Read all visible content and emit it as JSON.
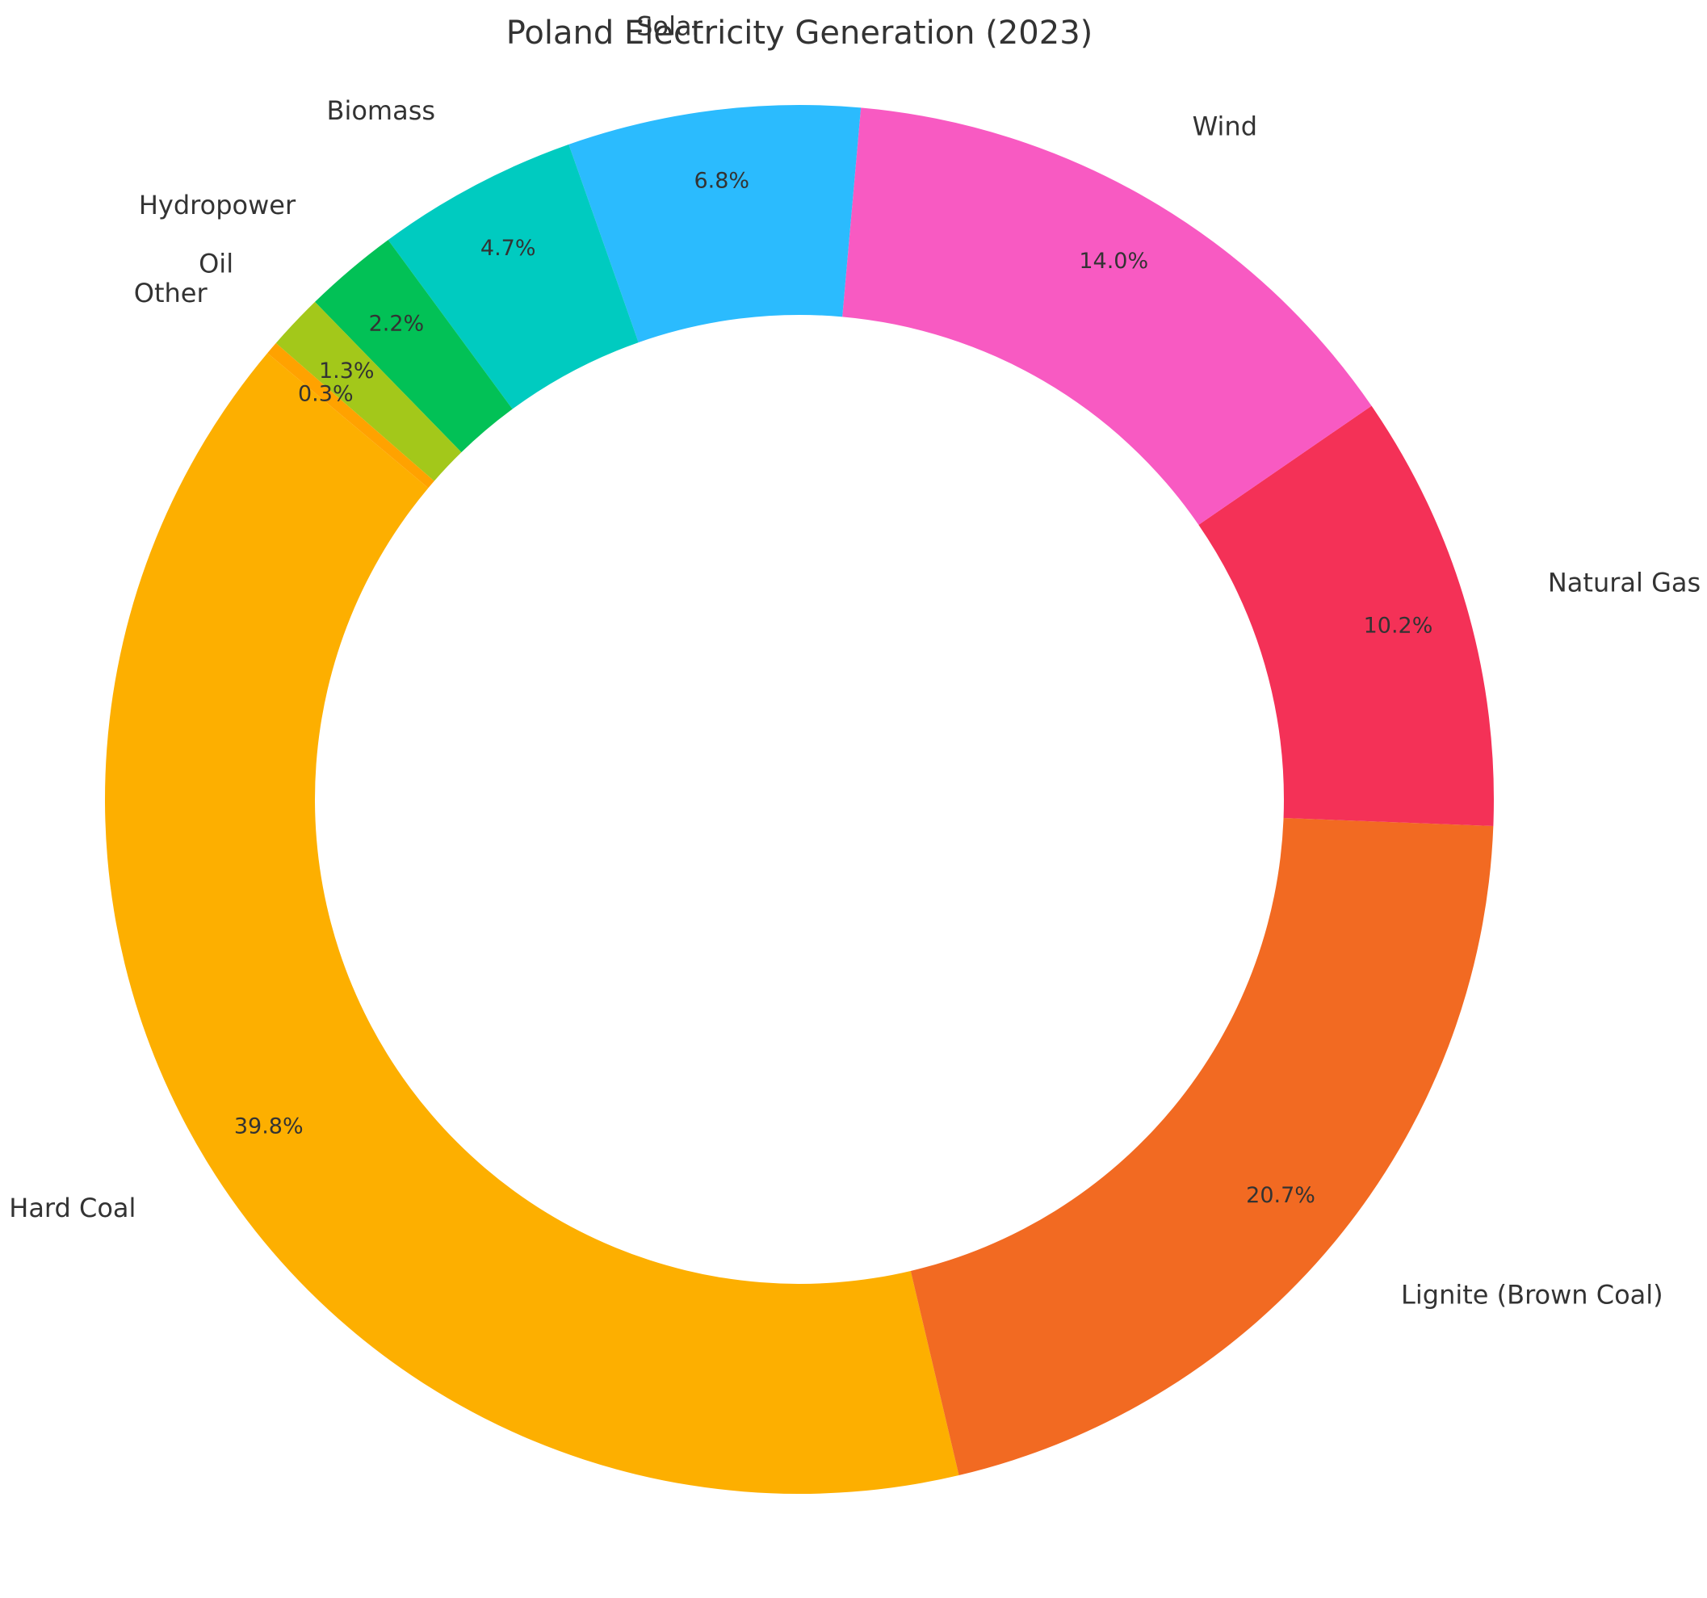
{
  "chart_data": {
    "type": "pie",
    "title": "Poland Electricity Generation (2023)",
    "donut": true,
    "start_angle_deg": 140,
    "direction": "counterclockwise",
    "slices": [
      {
        "label": "Hard Coal",
        "value": 39.8,
        "pct_label": "39.8%",
        "color": "#FDAF00"
      },
      {
        "label": "Lignite (Brown Coal)",
        "value": 20.7,
        "pct_label": "20.7%",
        "color": "#F26A22"
      },
      {
        "label": "Natural Gas",
        "value": 10.2,
        "pct_label": "10.2%",
        "color": "#F43157"
      },
      {
        "label": "Wind",
        "value": 14.0,
        "pct_label": "14.0%",
        "color": "#F85AC2"
      },
      {
        "label": "Solar",
        "value": 6.8,
        "pct_label": "6.8%",
        "color": "#2BBBFE"
      },
      {
        "label": "Biomass",
        "value": 4.7,
        "pct_label": "4.7%",
        "color": "#00CBC0"
      },
      {
        "label": "Hydropower",
        "value": 2.2,
        "pct_label": "2.2%",
        "color": "#02C156"
      },
      {
        "label": "Oil",
        "value": 1.3,
        "pct_label": "1.3%",
        "color": "#A3C81A"
      },
      {
        "label": "Other",
        "value": 0.3,
        "pct_label": "0.3%",
        "color": "#FFA200"
      }
    ]
  }
}
